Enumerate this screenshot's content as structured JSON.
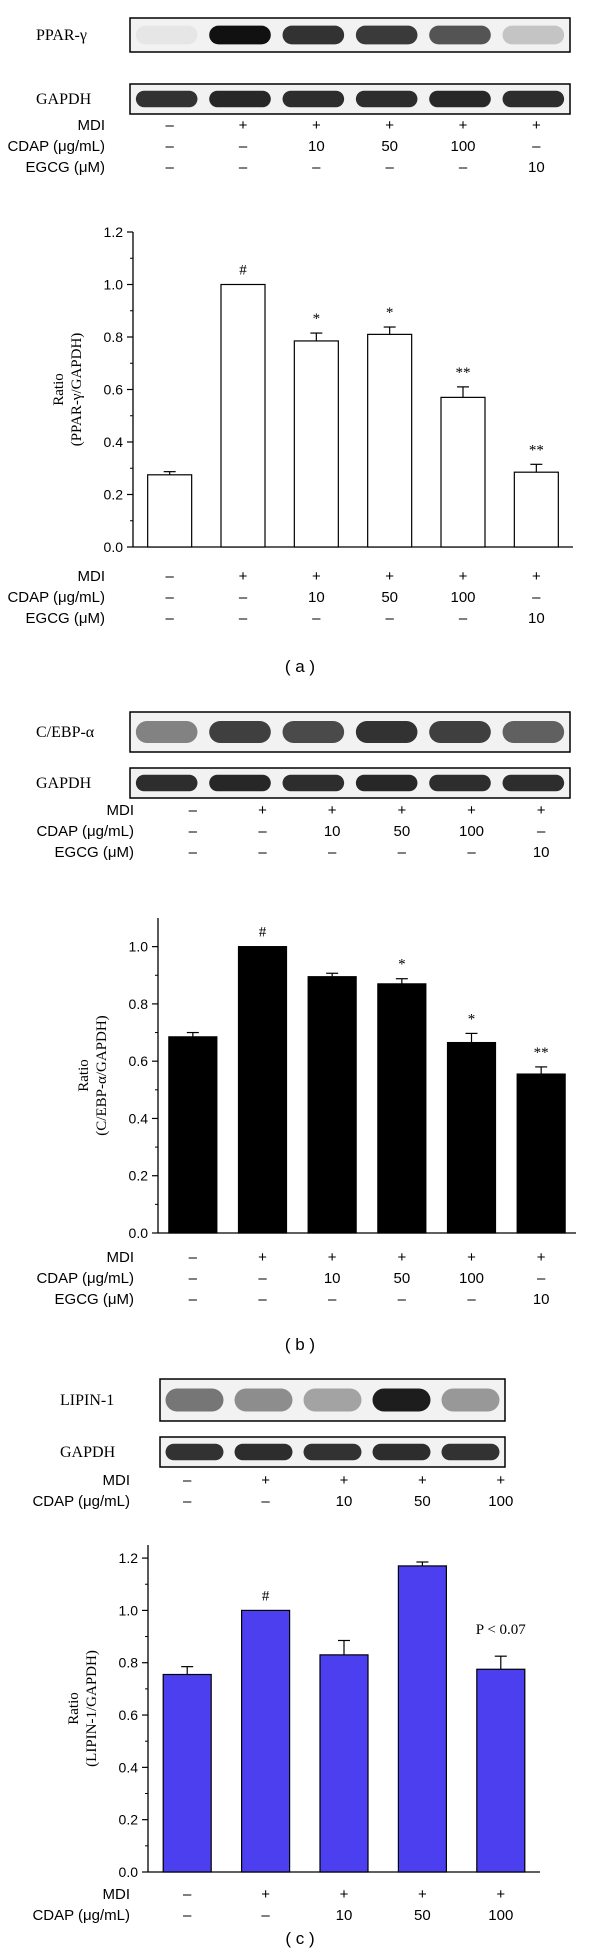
{
  "panels": [
    {
      "caption": "( a )",
      "blots": [
        {
          "label": "PPAR-γ",
          "lanes": [
            0.05,
            1.0,
            0.85,
            0.82,
            0.7,
            0.2
          ]
        },
        {
          "label": "GAPDH",
          "lanes": [
            0.85,
            0.9,
            0.88,
            0.88,
            0.9,
            0.88
          ]
        }
      ],
      "blot_treatments": {
        "rows": [
          {
            "label": "MDI",
            "values": [
              "–",
              "+",
              "+",
              "+",
              "+",
              "+"
            ]
          },
          {
            "label": "CDAP (μg/mL)",
            "values": [
              "–",
              "–",
              "10",
              "50",
              "100",
              "–"
            ]
          },
          {
            "label": "EGCG (μM)",
            "values": [
              "–",
              "–",
              "–",
              "–",
              "–",
              "10"
            ]
          }
        ]
      },
      "chart_data": {
        "type": "bar",
        "ylabel_line1": "Ratio",
        "ylabel_line2": "(PPAR-γ/GAPDH)",
        "ylim": [
          0,
          1.2
        ],
        "ytick_values": [
          0.0,
          0.2,
          0.4,
          0.6,
          0.8,
          1.0,
          1.2
        ],
        "ytick_labels": [
          "0.0",
          "0.2",
          "0.4",
          "0.6",
          "0.8",
          "1.0",
          "1.2"
        ],
        "values": [
          0.275,
          1.0,
          0.785,
          0.81,
          0.57,
          0.285
        ],
        "errors": [
          0.012,
          0.0,
          0.03,
          0.028,
          0.04,
          0.03
        ],
        "annotations": [
          "",
          "#",
          "*",
          "*",
          "**",
          "**"
        ],
        "bar_color": "#ffffff",
        "bar_stroke": "#000000"
      },
      "treatments": {
        "rows": [
          {
            "label": "MDI",
            "values": [
              "–",
              "+",
              "+",
              "+",
              "+",
              "+"
            ]
          },
          {
            "label": "CDAP (μg/mL)",
            "values": [
              "–",
              "–",
              "10",
              "50",
              "100",
              "–"
            ]
          },
          {
            "label": "EGCG (μM)",
            "values": [
              "–",
              "–",
              "–",
              "–",
              "–",
              "10"
            ]
          }
        ]
      }
    },
    {
      "caption": "( b )",
      "blots": [
        {
          "label": "C/EBP-α",
          "lanes": [
            0.5,
            0.8,
            0.75,
            0.85,
            0.8,
            0.65
          ]
        },
        {
          "label": "GAPDH",
          "lanes": [
            0.88,
            0.9,
            0.88,
            0.9,
            0.88,
            0.88
          ]
        }
      ],
      "blot_treatments": {
        "rows": [
          {
            "label": "MDI",
            "values": [
              "–",
              "+",
              "+",
              "+",
              "+",
              "+"
            ]
          },
          {
            "label": "CDAP (μg/mL)",
            "values": [
              "–",
              "–",
              "10",
              "50",
              "100",
              "–"
            ]
          },
          {
            "label": "EGCG (μM)",
            "values": [
              "–",
              "–",
              "–",
              "–",
              "–",
              "10"
            ]
          }
        ]
      },
      "chart_data": {
        "type": "bar",
        "ylabel_line1": "Ratio",
        "ylabel_line2": "(C/EBP-α/GAPDH)",
        "ylim": [
          0,
          1.1
        ],
        "ytick_values": [
          0.0,
          0.2,
          0.4,
          0.6,
          0.8,
          1.0
        ],
        "ytick_labels": [
          "0.0",
          "0.2",
          "0.4",
          "0.6",
          "0.8",
          "1.0"
        ],
        "values": [
          0.685,
          1.0,
          0.895,
          0.87,
          0.665,
          0.555
        ],
        "errors": [
          0.015,
          0.0,
          0.012,
          0.018,
          0.032,
          0.025
        ],
        "annotations": [
          "",
          "#",
          "",
          "*",
          "*",
          "**"
        ],
        "bar_color": "#000000",
        "bar_stroke": "#000000"
      },
      "treatments": {
        "rows": [
          {
            "label": "MDI",
            "values": [
              "–",
              "+",
              "+",
              "+",
              "+",
              "+"
            ]
          },
          {
            "label": "CDAP (μg/mL)",
            "values": [
              "–",
              "–",
              "10",
              "50",
              "100",
              "–"
            ]
          },
          {
            "label": "EGCG (μM)",
            "values": [
              "–",
              "–",
              "–",
              "–",
              "–",
              "10"
            ]
          }
        ]
      }
    },
    {
      "caption": "( c )",
      "blots": [
        {
          "label": "LIPIN-1",
          "lanes": [
            0.55,
            0.45,
            0.35,
            0.95,
            0.4
          ]
        },
        {
          "label": "GAPDH",
          "lanes": [
            0.85,
            0.88,
            0.85,
            0.88,
            0.85
          ]
        }
      ],
      "blot_treatments": {
        "rows": [
          {
            "label": "MDI",
            "values": [
              "–",
              "+",
              "+",
              "+",
              "+"
            ]
          },
          {
            "label": "CDAP (μg/mL)",
            "values": [
              "–",
              "–",
              "10",
              "50",
              "100"
            ]
          }
        ]
      },
      "chart_data": {
        "type": "bar",
        "ylabel_line1": "Ratio",
        "ylabel_line2": "(LIPIN-1/GAPDH)",
        "ylim": [
          0,
          1.25
        ],
        "ytick_values": [
          0.0,
          0.2,
          0.4,
          0.6,
          0.8,
          1.0,
          1.2
        ],
        "ytick_labels": [
          "0.0",
          "0.2",
          "0.4",
          "0.6",
          "0.8",
          "1.0",
          "1.2"
        ],
        "values": [
          0.755,
          1.0,
          0.83,
          1.17,
          0.775
        ],
        "errors": [
          0.03,
          0.0,
          0.055,
          0.015,
          0.05
        ],
        "annotations": [
          "",
          "#",
          "",
          "",
          "P < 0.07"
        ],
        "bar_color": "#4b3ff0",
        "bar_stroke": "#000000"
      },
      "treatments": {
        "rows": [
          {
            "label": "MDI",
            "values": [
              "–",
              "+",
              "+",
              "+",
              "+"
            ]
          },
          {
            "label": "CDAP (μg/mL)",
            "values": [
              "–",
              "–",
              "10",
              "50",
              "100"
            ]
          }
        ]
      }
    }
  ]
}
